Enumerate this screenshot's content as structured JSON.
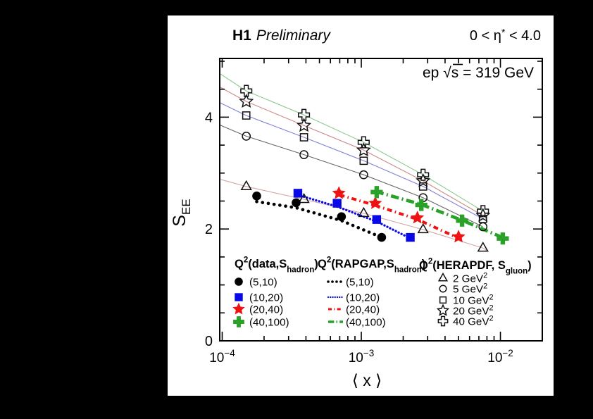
{
  "header": {
    "experiment": "H1",
    "status": "Preliminary",
    "eta_pre": "0 < η",
    "eta_sup": "*",
    "eta_post": " < 4.0"
  },
  "annotation": {
    "pre": "ep  ",
    "sqrt": "√",
    "s": "s",
    "post": " = 319 GeV"
  },
  "axes": {
    "x": {
      "title": "⟨ x ⟩",
      "scale": "log",
      "tick_exponents": [
        -4,
        -3,
        -2
      ]
    },
    "y": {
      "title_main": "S",
      "title_sub": "EE",
      "major_ticks": [
        0,
        2,
        4
      ],
      "minor_step": 0.5
    }
  },
  "chart_data": {
    "type": "scatter",
    "title": "H1 Preliminary",
    "subtitle": "0 < η* < 4.0",
    "annotation": "ep √s = 319 GeV",
    "xlabel": "⟨ x ⟩",
    "ylabel": "S_EE",
    "x_scale": "log",
    "xlim": [
      9.6e-05,
      0.02
    ],
    "ylim": [
      0,
      5.05
    ],
    "x_major_ticks": [
      0.0001,
      0.001,
      0.01
    ],
    "y_major_ticks": [
      0,
      2,
      4
    ],
    "grid": false,
    "groups": [
      {
        "header": {
          "pre": "Q",
          "sup": "2",
          "mid": "(data,S",
          "sub": "hadron",
          "post": ")"
        },
        "kind": "markers",
        "series": [
          {
            "label": "(5,10)",
            "marker": "filled-circle",
            "color": "#000000",
            "points": [
              [
                0.000177,
                2.59
              ],
              [
                0.00034,
                2.47
              ],
              [
                0.00072,
                2.22
              ],
              [
                0.0014,
                1.85
              ]
            ]
          },
          {
            "label": "(10,20)",
            "marker": "filled-square",
            "color": "#0808e8",
            "points": [
              [
                0.00035,
                2.64
              ],
              [
                0.00067,
                2.46
              ],
              [
                0.00129,
                2.17
              ],
              [
                0.00225,
                1.85
              ]
            ]
          },
          {
            "label": "(20,40)",
            "marker": "filled-star",
            "color": "#ee1212",
            "points": [
              [
                0.00069,
                2.64
              ],
              [
                0.00126,
                2.46
              ],
              [
                0.00253,
                2.2
              ],
              [
                0.005,
                1.86
              ]
            ]
          },
          {
            "label": "(40,100)",
            "marker": "filled-plus",
            "color": "#2aa22a",
            "points": [
              [
                0.00129,
                2.66
              ],
              [
                0.0027,
                2.43
              ],
              [
                0.0053,
                2.15
              ],
              [
                0.0104,
                1.83
              ]
            ]
          }
        ]
      },
      {
        "header": {
          "pre": "Q",
          "sup": "2",
          "mid": "(RAPGAP,S",
          "sub": "hadron",
          "post": ")"
        },
        "kind": "lines",
        "series": [
          {
            "label": "(5,10)",
            "line": "dot-bold",
            "color": "#000000",
            "points": [
              [
                0.000177,
                2.49
              ],
              [
                0.00034,
                2.38
              ],
              [
                0.00072,
                2.15
              ],
              [
                0.00137,
                1.86
              ]
            ]
          },
          {
            "label": "(10,20)",
            "line": "dot-fine",
            "color": "#0808e8",
            "points": [
              [
                0.00035,
                2.61
              ],
              [
                0.00067,
                2.4
              ],
              [
                0.0013,
                2.13
              ],
              [
                0.00244,
                1.79
              ]
            ]
          },
          {
            "label": "(20,40)",
            "line": "dash-dot",
            "color": "#ee1212",
            "points": [
              [
                0.0007,
                2.61
              ],
              [
                0.00127,
                2.42
              ],
              [
                0.00255,
                2.17
              ],
              [
                0.00537,
                1.8
              ]
            ]
          },
          {
            "label": "(40,100)",
            "line": "longdash-dot",
            "color": "#2aa22a",
            "points": [
              [
                0.00127,
                2.67
              ],
              [
                0.00269,
                2.44
              ],
              [
                0.00537,
                2.15
              ],
              [
                0.0115,
                1.8
              ]
            ]
          }
        ]
      },
      {
        "header": {
          "pre": "Q",
          "sup": "2",
          "mid": "(HERAPDF, S",
          "sub": "gluon",
          "post": ")"
        },
        "kind": "open-markers",
        "series": [
          {
            "label": "2 GeV",
            "label_sup": "2",
            "marker": "open-triangle",
            "line_color": "#d4a3a3",
            "points": [
              [
                9.6e-05,
                2.89
              ],
              [
                0.000149,
                2.76
              ],
              [
                0.000387,
                2.53
              ],
              [
                0.00104,
                2.28
              ],
              [
                0.00278,
                1.99
              ],
              [
                0.00749,
                1.66
              ],
              [
                0.0082,
                1.6
              ]
            ]
          },
          {
            "label": "5 GeV",
            "label_sup": "2",
            "marker": "open-circle",
            "line_color": "#666666",
            "points": [
              [
                9.6e-05,
                3.86
              ],
              [
                0.000149,
                3.66
              ],
              [
                0.000387,
                3.33
              ],
              [
                0.00104,
                2.97
              ],
              [
                0.00278,
                2.56
              ],
              [
                0.00749,
                2.04
              ]
            ]
          },
          {
            "label": "10 GeV",
            "label_sup": "2",
            "marker": "open-square",
            "line_color": "#8080d8",
            "points": [
              [
                9.6e-05,
                4.26
              ],
              [
                0.000149,
                4.03
              ],
              [
                0.000387,
                3.64
              ],
              [
                0.00104,
                3.22
              ],
              [
                0.00278,
                2.76
              ],
              [
                0.00749,
                2.18
              ]
            ]
          },
          {
            "label": "20 GeV",
            "label_sup": "2",
            "marker": "open-star",
            "line_color": "#cc8888",
            "points": [
              [
                9.6e-05,
                4.54
              ],
              [
                0.000149,
                4.28
              ],
              [
                0.000387,
                3.85
              ],
              [
                0.00104,
                3.41
              ],
              [
                0.00278,
                2.86
              ],
              [
                0.00749,
                2.24
              ]
            ]
          },
          {
            "label": "40 GeV",
            "label_sup": "2",
            "marker": "open-plus",
            "line_color": "#8cc88c",
            "points": [
              [
                9.6e-05,
                4.78
              ],
              [
                0.000149,
                4.47
              ],
              [
                0.000387,
                4.04
              ],
              [
                0.00104,
                3.55
              ],
              [
                0.00278,
                2.97
              ],
              [
                0.00749,
                2.32
              ]
            ]
          }
        ]
      }
    ]
  }
}
